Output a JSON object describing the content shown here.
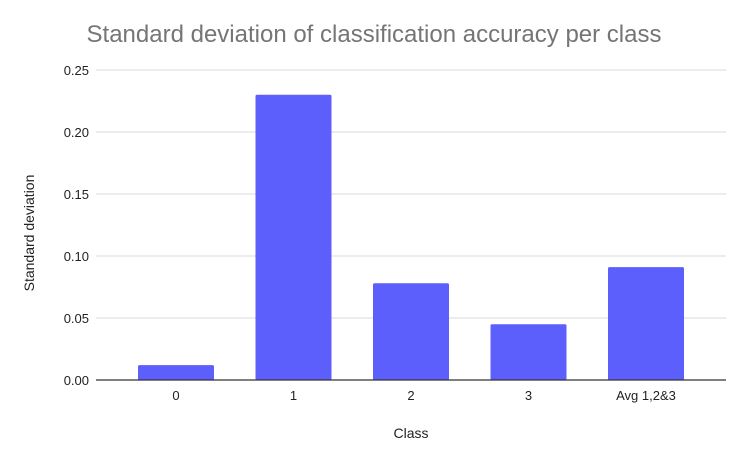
{
  "chart_data": {
    "type": "bar",
    "title": "Standard deviation of classification accuracy per class",
    "xlabel": "Class",
    "ylabel": "Standard deviation",
    "categories": [
      "0",
      "1",
      "2",
      "3",
      "Avg 1,2&3"
    ],
    "values": [
      0.012,
      0.23,
      0.078,
      0.045,
      0.091
    ],
    "ylim": [
      0,
      0.25
    ],
    "yticks": [
      "0.00",
      "0.05",
      "0.10",
      "0.15",
      "0.20",
      "0.25"
    ],
    "bar_color": "#5c5ffb",
    "grid": true,
    "legend": "none"
  }
}
